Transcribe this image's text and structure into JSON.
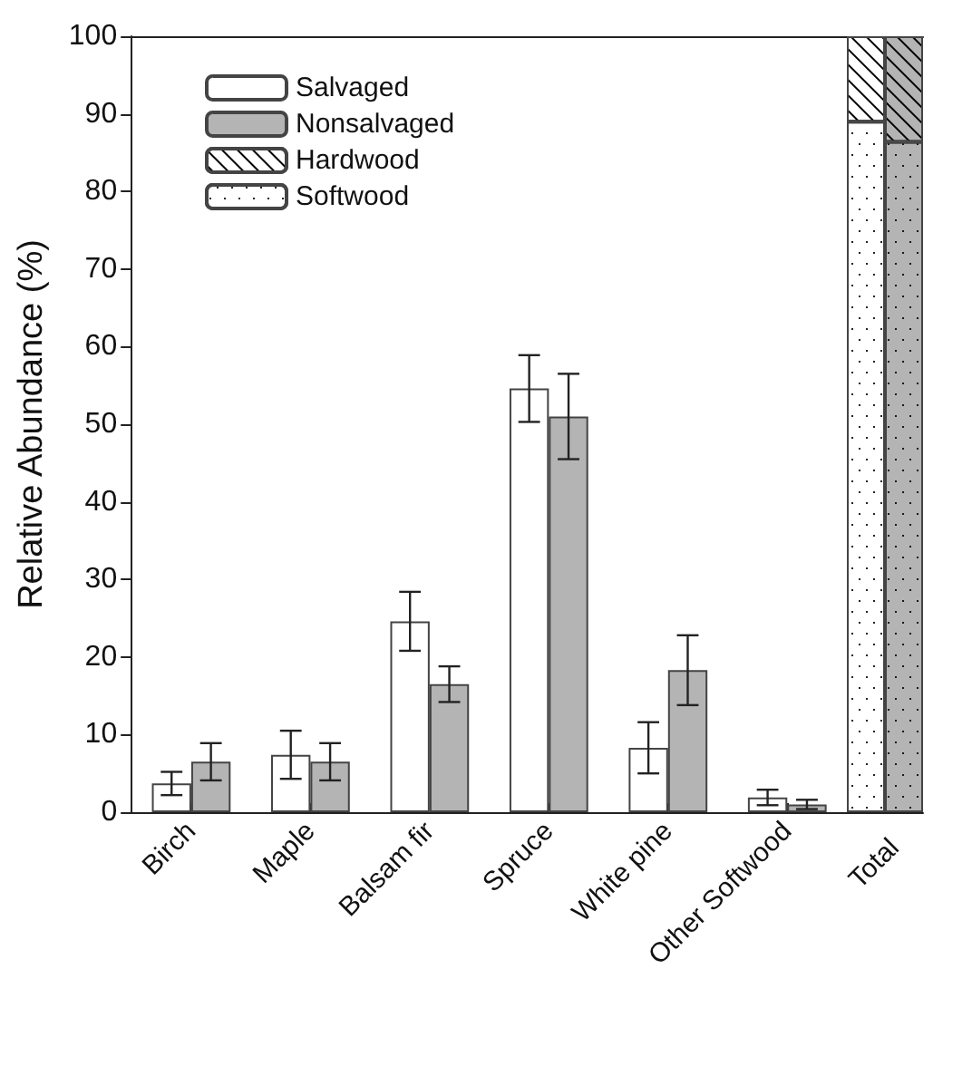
{
  "chart_data": [
    {
      "type": "bar",
      "ylabel": "Relative Abundance (%)",
      "categories": [
        "Birch",
        "Maple",
        "Balsam fir",
        "Spruce",
        "White pine",
        "Other Softwood"
      ],
      "series": [
        {
          "name": "Salvaged",
          "color": "#ffffff",
          "values": [
            3.7,
            7.4,
            24.6,
            54.6,
            8.3,
            1.9
          ],
          "errors": [
            1.5,
            3.1,
            3.8,
            4.3,
            3.3,
            1.0
          ]
        },
        {
          "name": "Nonsalvaged",
          "color": "#b4b4b4",
          "values": [
            6.5,
            6.5,
            16.5,
            51.0,
            18.3,
            1.0
          ],
          "errors": [
            2.4,
            2.4,
            2.3,
            5.5,
            4.5,
            0.6
          ]
        }
      ],
      "ylim": [
        0,
        100
      ],
      "yticks": [
        0,
        10,
        20,
        30,
        40,
        50,
        60,
        70,
        80,
        90,
        100
      ],
      "legend": "top left"
    },
    {
      "type": "bar",
      "xlabel": "Total",
      "categories": [
        null,
        null
      ],
      "stacked": true,
      "series": [
        {
          "name": "Softwood",
          "color": "#ffffff",
          "colors": [
            "#ffffff",
            "#b4b4b4"
          ],
          "values": [
            89.0,
            86.4
          ]
        },
        {
          "name": "Hardwood",
          "color": "#ffffff",
          "colors": [
            "#ffffff",
            "#b4b4b4"
          ],
          "values": [
            11.0,
            13.6
          ]
        }
      ],
      "ylim": [
        0,
        100
      ],
      "tick_labels": false,
      "legend": "top left"
    }
  ]
}
